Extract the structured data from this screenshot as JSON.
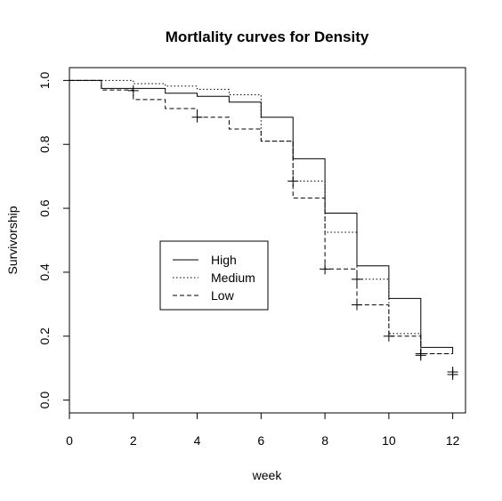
{
  "chart_data": {
    "type": "line",
    "style": "step",
    "title": "Mortlality curves for Density",
    "xlabel": "week",
    "ylabel": "Survivorship",
    "xlim": [
      0,
      12.4
    ],
    "ylim": [
      -0.04,
      1.04
    ],
    "xticks": [
      "0",
      "2",
      "4",
      "6",
      "8",
      "10",
      "12"
    ],
    "yticks": [
      "0.0",
      "0.2",
      "0.4",
      "0.6",
      "0.8",
      "1.0"
    ],
    "legend_position": "center-left",
    "series": [
      {
        "name": "High",
        "linestyle": "solid",
        "steps": [
          [
            0,
            1.0
          ],
          [
            1,
            0.975
          ],
          [
            3,
            0.96
          ],
          [
            4,
            0.95
          ],
          [
            5,
            0.932
          ],
          [
            6,
            0.885
          ],
          [
            7,
            0.755
          ],
          [
            8,
            0.585
          ],
          [
            9,
            0.42
          ],
          [
            10,
            0.318
          ],
          [
            11,
            0.165
          ],
          [
            12,
            0.145
          ]
        ],
        "censored": [
          [
            11,
            0.145
          ],
          [
            12,
            0.088
          ]
        ]
      },
      {
        "name": "Medium",
        "linestyle": "dotted",
        "steps": [
          [
            0,
            1.0
          ],
          [
            2,
            0.99
          ],
          [
            3,
            0.982
          ],
          [
            4,
            0.972
          ],
          [
            5,
            0.955
          ],
          [
            6,
            0.81
          ],
          [
            7,
            0.685
          ],
          [
            8,
            0.525
          ],
          [
            9,
            0.378
          ],
          [
            10,
            0.208
          ],
          [
            11,
            0.145
          ],
          [
            12,
            0.145
          ]
        ],
        "censored": [
          [
            7,
            0.685
          ],
          [
            9,
            0.378
          ]
        ]
      },
      {
        "name": "Low",
        "linestyle": "dashed",
        "steps": [
          [
            0,
            1.0
          ],
          [
            1,
            0.97
          ],
          [
            2,
            0.94
          ],
          [
            3,
            0.912
          ],
          [
            4,
            0.885
          ],
          [
            5,
            0.848
          ],
          [
            6,
            0.81
          ],
          [
            7,
            0.632
          ],
          [
            8,
            0.41
          ],
          [
            9,
            0.298
          ],
          [
            10,
            0.2
          ],
          [
            11,
            0.145
          ],
          [
            12,
            0.145
          ]
        ],
        "censored": [
          [
            2,
            0.968
          ],
          [
            4,
            0.885
          ],
          [
            8,
            0.41
          ],
          [
            9,
            0.298
          ],
          [
            10,
            0.2
          ],
          [
            11,
            0.14
          ],
          [
            12,
            0.08
          ]
        ]
      }
    ]
  }
}
